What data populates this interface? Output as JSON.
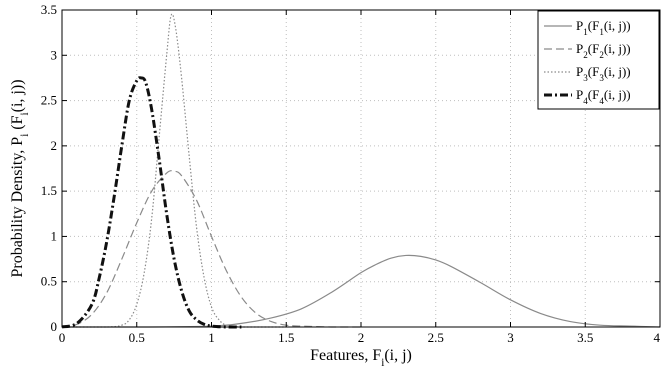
{
  "chart_data": {
    "type": "line",
    "title": "",
    "xlabel": "Features, F_i(i, j)",
    "ylabel": "Probability Density, P_i (F_i(i, j))",
    "xlim": [
      0,
      4
    ],
    "ylim": [
      0,
      3.5
    ],
    "x_ticks": [
      "0",
      "0.5",
      "1",
      "1.5",
      "2",
      "2.5",
      "3",
      "3.5",
      "4"
    ],
    "y_ticks": [
      "0",
      "0.5",
      "1",
      "1.5",
      "2",
      "2.5",
      "3",
      "3.5"
    ],
    "grid": true,
    "legend_position": "top-right",
    "series": [
      {
        "name": "P1(F1(i, j))",
        "style": "solid",
        "color": "#8a8a8a",
        "x": [
          0,
          0.5,
          1.0,
          1.2,
          1.4,
          1.6,
          1.8,
          2.0,
          2.1,
          2.2,
          2.3,
          2.4,
          2.5,
          2.6,
          2.8,
          3.0,
          3.2,
          3.4,
          3.6,
          3.8,
          4.0
        ],
        "y": [
          0,
          0,
          0.01,
          0.04,
          0.1,
          0.2,
          0.38,
          0.6,
          0.69,
          0.76,
          0.79,
          0.78,
          0.74,
          0.67,
          0.49,
          0.3,
          0.15,
          0.06,
          0.02,
          0.01,
          0
        ]
      },
      {
        "name": "P2(F2(i, j))",
        "style": "dashed",
        "color": "#8a8a8a",
        "x": [
          0,
          0.1,
          0.2,
          0.3,
          0.4,
          0.5,
          0.6,
          0.7,
          0.75,
          0.8,
          0.9,
          1.0,
          1.1,
          1.2,
          1.3,
          1.4,
          1.5,
          1.6,
          1.8,
          2.0
        ],
        "y": [
          0,
          0.03,
          0.14,
          0.38,
          0.75,
          1.15,
          1.5,
          1.7,
          1.72,
          1.67,
          1.4,
          1.0,
          0.62,
          0.33,
          0.15,
          0.06,
          0.02,
          0.01,
          0,
          0
        ]
      },
      {
        "name": "P3(F3(i, j))",
        "style": "dotted",
        "color": "#8a8a8a",
        "x": [
          0,
          0.3,
          0.4,
          0.45,
          0.5,
          0.55,
          0.6,
          0.65,
          0.7,
          0.73,
          0.76,
          0.8,
          0.85,
          0.9,
          0.95,
          1.0,
          1.05,
          1.1,
          1.2,
          1.5
        ],
        "y": [
          0,
          0,
          0.02,
          0.08,
          0.25,
          0.6,
          1.2,
          2.1,
          3.0,
          3.44,
          3.3,
          2.75,
          1.9,
          1.1,
          0.55,
          0.22,
          0.08,
          0.02,
          0,
          0
        ]
      },
      {
        "name": "P4(F4(i, j))",
        "style": "dashdot",
        "color": "#111111",
        "x": [
          0,
          0.1,
          0.2,
          0.25,
          0.3,
          0.35,
          0.4,
          0.45,
          0.5,
          0.53,
          0.56,
          0.6,
          0.65,
          0.7,
          0.75,
          0.8,
          0.85,
          0.9,
          0.95,
          1.0,
          1.1,
          1.2
        ],
        "y": [
          0,
          0.04,
          0.25,
          0.55,
          0.95,
          1.45,
          2.0,
          2.5,
          2.72,
          2.75,
          2.7,
          2.4,
          1.85,
          1.25,
          0.75,
          0.4,
          0.18,
          0.08,
          0.03,
          0.01,
          0,
          0
        ]
      }
    ]
  }
}
